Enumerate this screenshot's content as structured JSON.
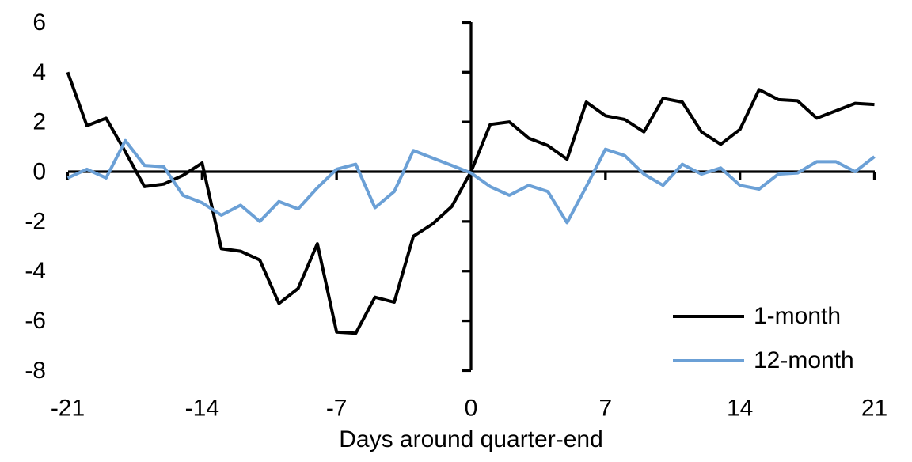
{
  "chart_data": {
    "type": "line",
    "title": "",
    "xlabel": "Days around quarter-end",
    "ylabel": "",
    "xlim": [
      -21,
      21
    ],
    "ylim": [
      -8,
      6
    ],
    "grid": false,
    "legend_position": "inside-bottom-right",
    "x_ticks": [
      -21,
      -14,
      -7,
      0,
      7,
      14,
      21
    ],
    "y_ticks": [
      6,
      4,
      2,
      0,
      -2,
      -4,
      -6,
      -8
    ],
    "x": [
      -21,
      -20,
      -19,
      -18,
      -17,
      -16,
      -15,
      -14,
      -13,
      -12,
      -11,
      -10,
      -9,
      -8,
      -7,
      -6,
      -5,
      -4,
      -3,
      -2,
      -1,
      0,
      1,
      2,
      3,
      4,
      5,
      6,
      7,
      8,
      9,
      10,
      11,
      12,
      13,
      14,
      15,
      16,
      17,
      18,
      19,
      20,
      21
    ],
    "series": [
      {
        "name": "1-month",
        "color": "#000000",
        "values": [
          4.0,
          1.85,
          2.15,
          0.8,
          -0.6,
          -0.5,
          -0.15,
          0.35,
          -3.1,
          -3.2,
          -3.55,
          -5.3,
          -4.7,
          -2.9,
          -6.45,
          -6.5,
          -5.05,
          -5.25,
          -2.6,
          -2.1,
          -1.4,
          0.0,
          1.9,
          2.0,
          1.35,
          1.05,
          0.5,
          2.8,
          2.25,
          2.1,
          1.6,
          2.95,
          2.8,
          1.6,
          1.1,
          1.7,
          3.3,
          2.9,
          2.85,
          2.15,
          2.45,
          2.75,
          2.7
        ]
      },
      {
        "name": "12-month",
        "color": "#6BA0D6",
        "values": [
          -0.25,
          0.1,
          -0.25,
          1.25,
          0.25,
          0.2,
          -0.95,
          -1.25,
          -1.75,
          -1.35,
          -2.0,
          -1.2,
          -1.5,
          -0.65,
          0.1,
          0.3,
          -1.45,
          -0.8,
          0.85,
          0.55,
          0.25,
          -0.05,
          -0.6,
          -0.95,
          -0.55,
          -0.8,
          -2.05,
          -0.6,
          0.9,
          0.65,
          -0.1,
          -0.55,
          0.3,
          -0.1,
          0.15,
          -0.55,
          -0.7,
          -0.1,
          -0.05,
          0.4,
          0.4,
          0.0,
          0.6
        ]
      }
    ],
    "legend": [
      {
        "label": "1-month",
        "color": "#000000"
      },
      {
        "label": "12-month",
        "color": "#6BA0D6"
      }
    ]
  }
}
